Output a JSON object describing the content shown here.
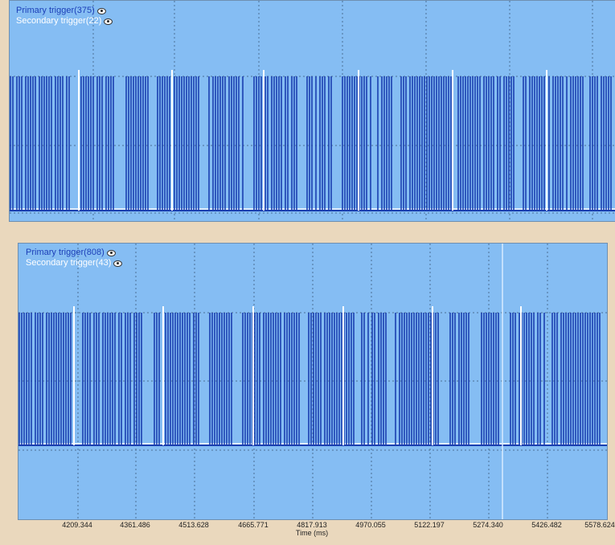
{
  "panels": [
    {
      "legend": {
        "primary": "Primary trigger(375)",
        "secondary": "Secondary trigger(22)"
      },
      "primary_count": 375,
      "secondary_count": 22
    },
    {
      "legend": {
        "primary": "Primary trigger(808)",
        "secondary": "Secondary trigger(43)"
      },
      "primary_count": 808,
      "secondary_count": 43
    }
  ],
  "axis": {
    "title": "Time (ms)",
    "ticks": [
      "4209.344",
      "4361.486",
      "4513.628",
      "4665.771",
      "4817.913",
      "4970.055",
      "5122.197",
      "5274.340",
      "5426.482",
      "5578.624"
    ]
  },
  "colors": {
    "panel_bg": "#85bdf3",
    "primary": "#1a3fb0",
    "secondary": "#ffffff",
    "grid": "#4a6f96",
    "page_bg": "#ead8bd"
  }
}
